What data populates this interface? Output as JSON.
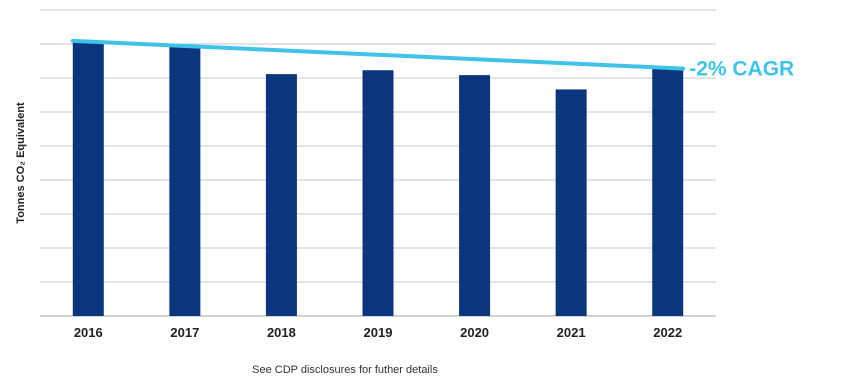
{
  "chart_data": {
    "type": "bar",
    "categories": [
      "2016",
      "2017",
      "2018",
      "2019",
      "2020",
      "2021",
      "2022"
    ],
    "values": [
      8.45,
      8.3,
      7.43,
      7.55,
      7.4,
      6.96,
      7.61
    ],
    "ylabel": "Tonnes CO₂ Equivalent",
    "ylim": [
      0,
      9.4
    ],
    "gridlines": 9,
    "show_y_tick_labels": false,
    "grid": true,
    "trend_line": {
      "start_value": 8.45,
      "end_value": 7.6,
      "label": "-2% CAGR"
    },
    "colors": {
      "bar": "#0b357d",
      "trend": "#3fc3e8",
      "grid": "#b8b8b8",
      "annotation": "#3fc3e8"
    }
  },
  "footnote": "See CDP disclosures for futher details"
}
